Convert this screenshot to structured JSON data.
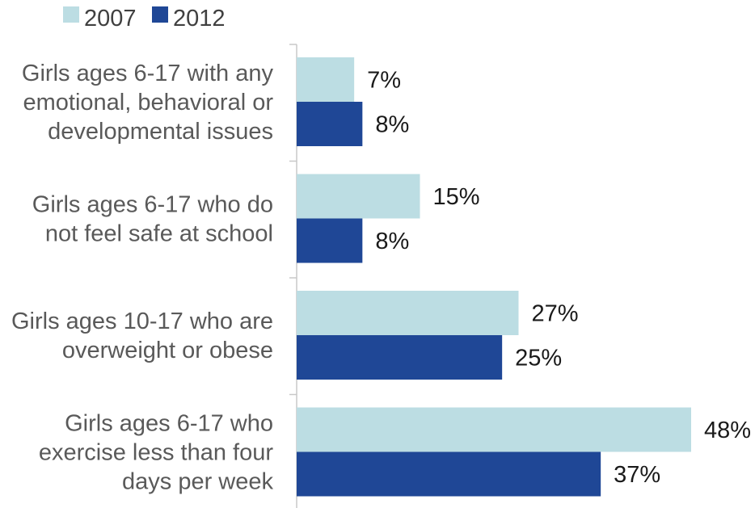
{
  "chart_data": {
    "type": "bar",
    "orientation": "horizontal",
    "title": "",
    "xlabel": "",
    "ylabel": "",
    "categories": [
      "Girls ages 6-17 with any emotional, behavioral or developmental issues",
      "Girls ages 6-17 who do not feel safe at school",
      "Girls ages 10-17 who are overweight or obese",
      "Girls ages 6-17 who exercise less than four days per week"
    ],
    "category_lines": [
      [
        "Girls ages 6-17 with any",
        "emotional, behavioral or",
        "developmental issues"
      ],
      [
        "Girls ages 6-17 who do",
        "not feel safe at school"
      ],
      [
        "Girls ages 10-17 who are",
        "overweight or obese"
      ],
      [
        "Girls ages 6-17 who",
        "exercise less than four",
        "days per week"
      ]
    ],
    "series": [
      {
        "name": "2007",
        "color": "#bcdde3",
        "values": [
          7,
          15,
          27,
          48
        ],
        "labels": [
          "7%",
          "15%",
          "27%",
          "48%"
        ]
      },
      {
        "name": "2012",
        "color": "#1f4796",
        "values": [
          8,
          8,
          25,
          37
        ],
        "labels": [
          "8%",
          "8%",
          "25%",
          "37%"
        ]
      }
    ],
    "xlim": [
      0,
      50
    ],
    "unit": "%",
    "grid": false,
    "legend": {
      "placement": "top-left"
    },
    "axis_color": "#c8c8c8"
  }
}
